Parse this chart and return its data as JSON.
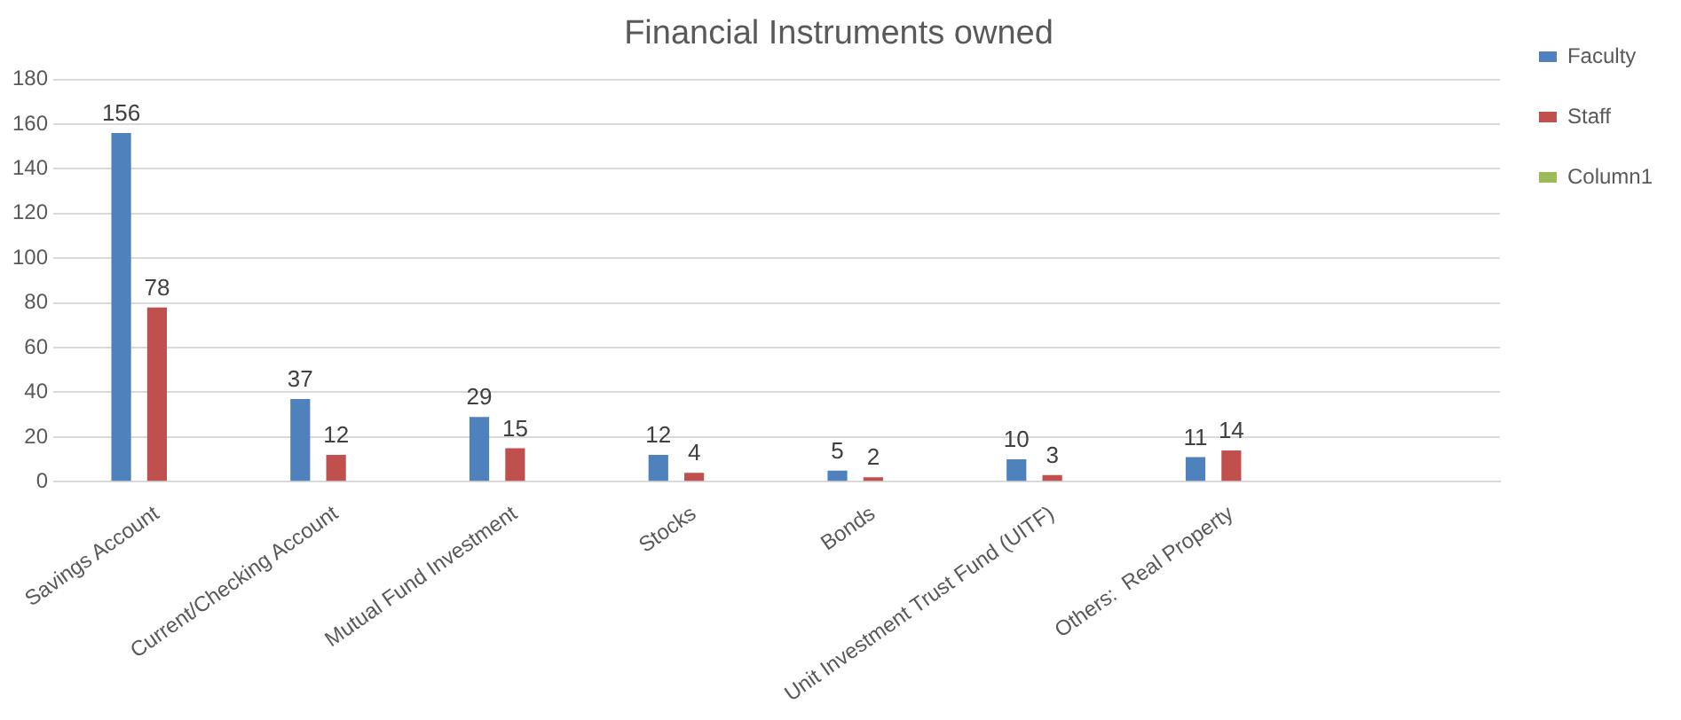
{
  "chart_data": {
    "type": "bar",
    "title": "Financial Instruments owned",
    "categories": [
      "Savings Account",
      "Current/Checking Account",
      "Mutual Fund Investment",
      "Stocks",
      "Bonds",
      "Unit Investment Trust Fund (UITF)",
      "Others:  Real Property",
      null
    ],
    "series": [
      {
        "name": "Faculty",
        "color": "#4f81bd",
        "values": [
          156,
          37,
          29,
          12,
          5,
          10,
          11,
          null
        ]
      },
      {
        "name": "Staff",
        "color": "#c0504d",
        "values": [
          78,
          12,
          15,
          4,
          2,
          3,
          14,
          null
        ]
      },
      {
        "name": "Column1",
        "color": "#9bbb59",
        "values": [
          null,
          null,
          null,
          null,
          null,
          null,
          null,
          null
        ]
      }
    ],
    "ylim": [
      0,
      180
    ],
    "yticks": [
      0,
      20,
      40,
      60,
      80,
      100,
      120,
      140,
      160,
      180
    ],
    "grid": "y",
    "legend": "right",
    "data_labels": true
  }
}
